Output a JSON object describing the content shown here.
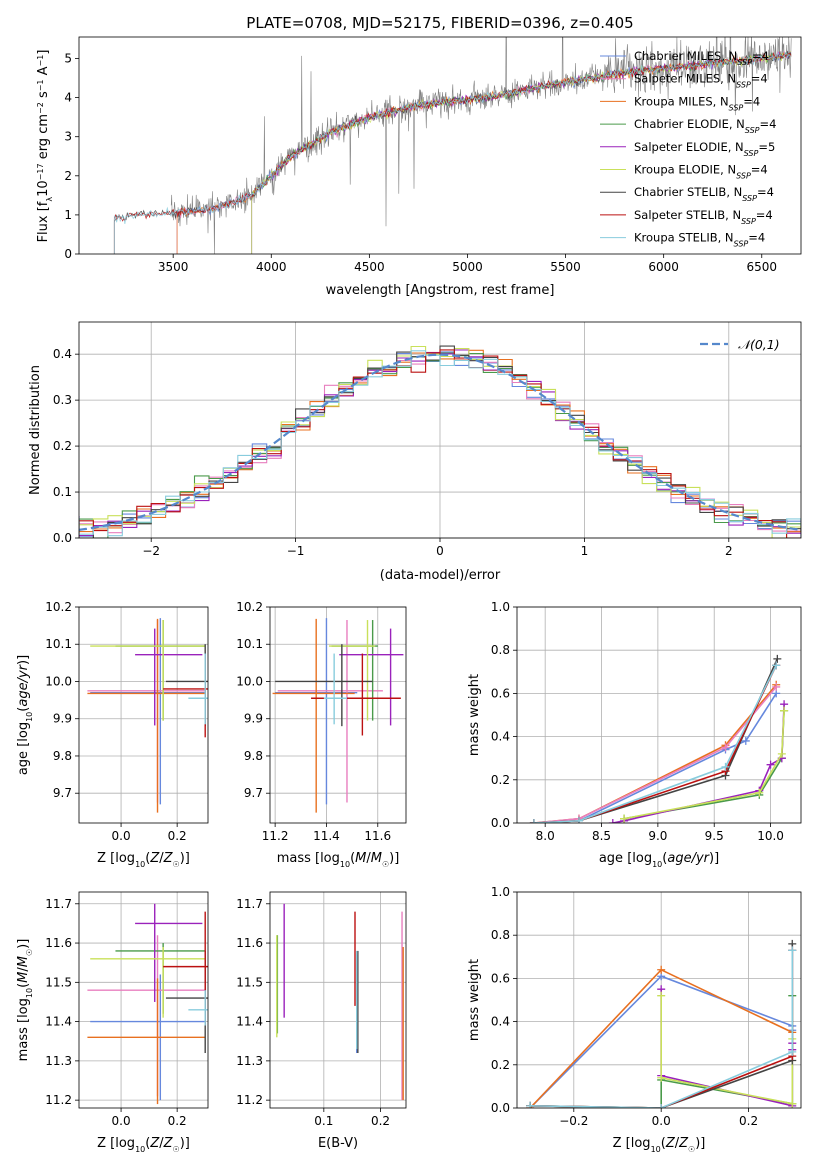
{
  "figure_title": "PLATE=0708, MJD=52175, FIBERID=0396, z=0.405",
  "colors": {
    "Chabrier MILES": "#6688dd",
    "Salpeter MILES": "#e87fbf",
    "Kroupa MILES": "#e87020",
    "Chabrier ELODIE": "#4a9a4a",
    "Salpeter ELODIE": "#9a22bb",
    "Kroupa ELODIE": "#c9e05a",
    "Chabrier STELIB": "#444444",
    "Salpeter STELIB": "#bb1111",
    "Kroupa STELIB": "#88ccdd",
    "normal": "#5588cc",
    "data": "#808080"
  },
  "chart_data": [
    {
      "id": "spectrum",
      "type": "line",
      "title": "PLATE=0708, MJD=52175, FIBERID=0396, z=0.405",
      "xlabel": "wavelength [Angstrom, rest frame]",
      "ylabel": "Flux [f_λ 10^-17 erg cm^-2 s^-1 A^-1]",
      "xlim": [
        3020,
        6700
      ],
      "ylim": [
        0,
        5.55
      ],
      "xticks": [
        3500,
        4000,
        4500,
        5000,
        5500,
        6000,
        6500
      ],
      "yticks": [
        0,
        1,
        2,
        3,
        4,
        5
      ],
      "legend_position": "top-right",
      "legend": [
        {
          "name": "Chabrier MILES",
          "nssp": "4"
        },
        {
          "name": "Salpeter MILES",
          "nssp": "4"
        },
        {
          "name": "Kroupa MILES",
          "nssp": "4"
        },
        {
          "name": "Chabrier ELODIE",
          "nssp": "4"
        },
        {
          "name": "Salpeter ELODIE",
          "nssp": "5"
        },
        {
          "name": "Kroupa ELODIE",
          "nssp": "4"
        },
        {
          "name": "Chabrier STELIB",
          "nssp": "4"
        },
        {
          "name": "Salpeter STELIB",
          "nssp": "4"
        },
        {
          "name": "Kroupa STELIB",
          "nssp": "4"
        }
      ],
      "model_start": {
        "MILES": 3520,
        "ELODIE": 3900,
        "STELIB": 3200
      },
      "continuum": {
        "x": [
          3200,
          3300,
          3500,
          3700,
          3900,
          4000,
          4100,
          4300,
          4500,
          4700,
          4900,
          5100,
          5300,
          5500,
          5700,
          5900,
          6100,
          6300,
          6500,
          6650
        ],
        "y": [
          0.9,
          1.0,
          1.05,
          1.15,
          1.5,
          2.0,
          2.5,
          3.1,
          3.5,
          3.75,
          3.9,
          4.0,
          4.2,
          4.4,
          4.55,
          4.7,
          4.8,
          4.9,
          5.0,
          5.1
        ]
      },
      "data_range": [
        3490,
        6650
      ],
      "grid": false
    },
    {
      "id": "residuals",
      "type": "area",
      "xlabel": "(data-model)/error",
      "ylabel": "Normed distribution",
      "xlim": [
        -2.5,
        2.5
      ],
      "ylim": [
        0,
        0.47
      ],
      "xticks": [
        -2,
        -1,
        0,
        1,
        2
      ],
      "yticks": [
        0.0,
        0.1,
        0.2,
        0.3,
        0.4
      ],
      "legend": "𝒩(0,1)",
      "legend_position": "top-right",
      "bin_width": 0.1,
      "grid": true
    },
    {
      "id": "age_vs_Z",
      "type": "scatter",
      "xlabel": "Z [log10(Z/Z☉)]",
      "ylabel": "age [log10(age/yr)]",
      "xlim": [
        -0.15,
        0.31
      ],
      "ylim": [
        9.62,
        10.2
      ],
      "xticks": [
        0.0,
        0.2
      ],
      "yticks": [
        9.7,
        9.8,
        9.9,
        10.0,
        10.1,
        10.2
      ],
      "points": [
        {
          "model": "Chabrier MILES",
          "x": 0.14,
          "y": 9.97,
          "xerr": [
            0.25,
            0.16
          ],
          "yerr": [
            0.3,
            0.2
          ]
        },
        {
          "model": "Salpeter MILES",
          "x": 0.13,
          "y": 9.975,
          "xerr": [
            0.25,
            0.17
          ],
          "yerr": [
            0.3,
            0.19
          ]
        },
        {
          "model": "Kroupa MILES",
          "x": 0.13,
          "y": 9.968,
          "xerr": [
            0.25,
            0.17
          ],
          "yerr": [
            0.32,
            0.2
          ]
        },
        {
          "model": "Chabrier ELODIE",
          "x": 0.15,
          "y": 10.095,
          "xerr": [
            0.17,
            0.15
          ],
          "yerr": [
            0.2,
            0.07
          ]
        },
        {
          "model": "Salpeter ELODIE",
          "x": 0.12,
          "y": 10.072,
          "xerr": [
            0.07,
            0.17
          ],
          "yerr": [
            0.19,
            0.07
          ]
        },
        {
          "model": "Kroupa ELODIE",
          "x": 0.15,
          "y": 10.095,
          "xerr": [
            0.26,
            0.15
          ],
          "yerr": [
            0.2,
            0.07
          ]
        },
        {
          "model": "Chabrier STELIB",
          "x": 0.3,
          "y": 10.0,
          "xerr": [
            0.14,
            0.01
          ],
          "yerr": [
            0.12,
            0.1
          ]
        },
        {
          "model": "Salpeter STELIB",
          "x": 0.3,
          "y": 9.98,
          "xerr": [
            0.15,
            0.01
          ],
          "yerr": [
            0.13,
            0.09
          ]
        },
        {
          "model": "Kroupa STELIB",
          "x": 0.3,
          "y": 9.955,
          "xerr": [
            0.06,
            0.01
          ],
          "yerr": [
            0.07,
            0.12
          ]
        }
      ],
      "grid": true
    },
    {
      "id": "age_vs_mass",
      "type": "scatter",
      "xlabel": "mass [log10(M/M☉)]",
      "ylabel": "",
      "xlim": [
        11.18,
        11.71
      ],
      "ylim": [
        9.62,
        10.2
      ],
      "xticks": [
        11.2,
        11.4,
        11.6
      ],
      "yticks": [
        9.7,
        9.8,
        9.9,
        10.0,
        10.1,
        10.2
      ],
      "points": [
        {
          "model": "Chabrier MILES",
          "x": 11.4,
          "y": 9.97,
          "xerr": [
            0.2,
            0.12
          ],
          "yerr": [
            0.3,
            0.2
          ]
        },
        {
          "model": "Salpeter MILES",
          "x": 11.48,
          "y": 9.975,
          "xerr": [
            0.27,
            0.14
          ],
          "yerr": [
            0.3,
            0.19
          ]
        },
        {
          "model": "Kroupa MILES",
          "x": 11.36,
          "y": 9.968,
          "xerr": [
            0.17,
            0.15
          ],
          "yerr": [
            0.32,
            0.2
          ]
        },
        {
          "model": "Chabrier ELODIE",
          "x": 11.58,
          "y": 10.095,
          "xerr": [
            0.16,
            0.02
          ],
          "yerr": [
            0.2,
            0.07
          ]
        },
        {
          "model": "Salpeter ELODIE",
          "x": 11.65,
          "y": 10.072,
          "xerr": [
            0.2,
            0.05
          ],
          "yerr": [
            0.19,
            0.07
          ]
        },
        {
          "model": "Kroupa ELODIE",
          "x": 11.56,
          "y": 10.095,
          "xerr": [
            0.15,
            0.03
          ],
          "yerr": [
            0.2,
            0.07
          ]
        },
        {
          "model": "Chabrier STELIB",
          "x": 11.46,
          "y": 10.0,
          "xerr": [
            0.26,
            0.12
          ],
          "yerr": [
            0.12,
            0.1
          ]
        },
        {
          "model": "Salpeter STELIB",
          "x": 11.54,
          "y": 9.955,
          "xerr": [
            0.2,
            0.15
          ],
          "yerr": [
            0.1,
            0.12
          ]
        },
        {
          "model": "Kroupa STELIB",
          "x": 11.43,
          "y": 9.955,
          "xerr": [
            0.04,
            0.05
          ],
          "yerr": [
            0.07,
            0.12
          ]
        }
      ],
      "grid": true
    },
    {
      "id": "mass_weight_vs_age",
      "type": "line",
      "xlabel": "age [log10(age/yr)]",
      "ylabel": "mass weight",
      "xlim": [
        7.75,
        10.27
      ],
      "ylim": [
        0,
        1.0
      ],
      "xticks": [
        8.0,
        8.5,
        9.0,
        9.5,
        10.0
      ],
      "yticks": [
        0.0,
        0.2,
        0.4,
        0.6,
        0.8,
        1.0
      ],
      "series": [
        {
          "model": "Chabrier MILES",
          "x": [
            7.9,
            8.3,
            9.6,
            9.78,
            10.05
          ],
          "y": [
            0.0,
            0.01,
            0.34,
            0.38,
            0.6
          ]
        },
        {
          "model": "Kroupa MILES",
          "x": [
            7.9,
            8.3,
            9.6,
            10.05
          ],
          "y": [
            0.0,
            0.02,
            0.36,
            0.64
          ]
        },
        {
          "model": "Salpeter MILES",
          "x": [
            7.9,
            8.3,
            9.6,
            10.05
          ],
          "y": [
            0.0,
            0.02,
            0.35,
            0.63
          ]
        },
        {
          "model": "Chabrier ELODIE",
          "x": [
            8.7,
            9.9,
            10.1,
            10.12
          ],
          "y": [
            0.02,
            0.13,
            0.3,
            0.52
          ]
        },
        {
          "model": "Salpeter ELODIE",
          "x": [
            8.6,
            8.7,
            9.9,
            10.0,
            10.1,
            10.12
          ],
          "y": [
            0.0,
            0.01,
            0.15,
            0.27,
            0.3,
            0.55
          ]
        },
        {
          "model": "Kroupa ELODIE",
          "x": [
            8.7,
            9.9,
            10.1,
            10.12
          ],
          "y": [
            0.02,
            0.14,
            0.32,
            0.52
          ]
        },
        {
          "model": "Chabrier STELIB",
          "x": [
            7.9,
            8.3,
            9.6,
            10.06
          ],
          "y": [
            0.0,
            0.01,
            0.22,
            0.76
          ]
        },
        {
          "model": "Salpeter STELIB",
          "x": [
            7.9,
            8.3,
            9.6,
            10.05
          ],
          "y": [
            0.0,
            0.01,
            0.24,
            0.73
          ]
        },
        {
          "model": "Kroupa STELIB",
          "x": [
            7.9,
            8.3,
            9.6,
            10.05
          ],
          "y": [
            0.0,
            0.01,
            0.26,
            0.73
          ]
        }
      ],
      "grid": true
    },
    {
      "id": "mass_vs_Z",
      "type": "scatter",
      "xlabel": "Z [log10(Z/Z☉)]",
      "ylabel": "mass [log10(M/M☉)]",
      "xlim": [
        -0.15,
        0.31
      ],
      "ylim": [
        11.18,
        11.73
      ],
      "xticks": [
        0.0,
        0.2
      ],
      "yticks": [
        11.2,
        11.3,
        11.4,
        11.5,
        11.6,
        11.7
      ],
      "points": [
        {
          "model": "Chabrier MILES",
          "x": 0.14,
          "y": 11.4,
          "xerr": [
            0.25,
            0.16
          ],
          "yerr": [
            0.2,
            0.12
          ]
        },
        {
          "model": "Salpeter MILES",
          "x": 0.13,
          "y": 11.48,
          "xerr": [
            0.25,
            0.17
          ],
          "yerr": [
            0.27,
            0.14
          ]
        },
        {
          "model": "Kroupa MILES",
          "x": 0.13,
          "y": 11.36,
          "xerr": [
            0.25,
            0.17
          ],
          "yerr": [
            0.17,
            0.15
          ]
        },
        {
          "model": "Chabrier ELODIE",
          "x": 0.15,
          "y": 11.58,
          "xerr": [
            0.17,
            0.15
          ],
          "yerr": [
            0.16,
            0.02
          ]
        },
        {
          "model": "Salpeter ELODIE",
          "x": 0.12,
          "y": 11.65,
          "xerr": [
            0.07,
            0.17
          ],
          "yerr": [
            0.2,
            0.05
          ]
        },
        {
          "model": "Kroupa ELODIE",
          "x": 0.15,
          "y": 11.56,
          "xerr": [
            0.26,
            0.15
          ],
          "yerr": [
            0.15,
            0.03
          ]
        },
        {
          "model": "Chabrier STELIB",
          "x": 0.3,
          "y": 11.46,
          "xerr": [
            0.14,
            0.01
          ],
          "yerr": [
            0.14,
            0.12
          ]
        },
        {
          "model": "Salpeter STELIB",
          "x": 0.3,
          "y": 11.54,
          "xerr": [
            0.15,
            0.01
          ],
          "yerr": [
            0.15,
            0.14
          ]
        },
        {
          "model": "Kroupa STELIB",
          "x": 0.3,
          "y": 11.43,
          "xerr": [
            0.06,
            0.01
          ],
          "yerr": [
            0.04,
            0.05
          ]
        }
      ],
      "grid": true
    },
    {
      "id": "mass_vs_ebv",
      "type": "scatter",
      "xlabel": "E(B-V)",
      "ylabel": "",
      "xlim": [
        0.005,
        0.245
      ],
      "ylim": [
        11.18,
        11.73
      ],
      "xticks": [
        0.1,
        0.2
      ],
      "yticks": [
        11.2,
        11.3,
        11.4,
        11.5,
        11.6,
        11.7
      ],
      "points": [
        {
          "model": "Chabrier MILES",
          "x": 0.158,
          "y": 11.4,
          "yerr": [
            0.08,
            0.17
          ]
        },
        {
          "model": "Salpeter MILES",
          "x": 0.238,
          "y": 11.48,
          "yerr": [
            0.28,
            0.2
          ]
        },
        {
          "model": "Kroupa MILES",
          "x": 0.24,
          "y": 11.36,
          "yerr": [
            0.16,
            0.23
          ]
        },
        {
          "model": "Chabrier ELODIE",
          "x": 0.018,
          "y": 11.56,
          "yerr": [
            0.19,
            0.06
          ]
        },
        {
          "model": "Salpeter ELODIE",
          "x": 0.03,
          "y": 11.6,
          "yerr": [
            0.19,
            0.1
          ]
        },
        {
          "model": "Kroupa ELODIE",
          "x": 0.017,
          "y": 11.55,
          "yerr": [
            0.19,
            0.07
          ]
        },
        {
          "model": "Chabrier STELIB",
          "x": 0.16,
          "y": 11.45,
          "yerr": [
            0.13,
            0.13
          ]
        },
        {
          "model": "Salpeter STELIB",
          "x": 0.155,
          "y": 11.54,
          "yerr": [
            0.1,
            0.14
          ]
        },
        {
          "model": "Kroupa STELIB",
          "x": 0.158,
          "y": 11.43,
          "yerr": [
            0.1,
            0.15
          ]
        }
      ],
      "grid": true
    },
    {
      "id": "mass_weight_vs_Z",
      "type": "line",
      "xlabel": "Z [log10(Z/Z☉)]",
      "ylabel": "mass weight",
      "xlim": [
        -0.33,
        0.32
      ],
      "ylim": [
        0,
        1.0
      ],
      "xticks": [
        -0.2,
        0.0,
        0.2
      ],
      "yticks": [
        0.0,
        0.2,
        0.4,
        0.6,
        0.8,
        1.0
      ],
      "series": [
        {
          "model": "Chabrier MILES",
          "x": [
            -0.3,
            0.0,
            0.3,
            0.3
          ],
          "y": [
            0.0,
            0.61,
            0.38,
            0.36
          ]
        },
        {
          "model": "Kroupa MILES",
          "x": [
            -0.3,
            0.0,
            0.3
          ],
          "y": [
            0.0,
            0.64,
            0.35
          ]
        },
        {
          "model": "Chabrier ELODIE",
          "x": [
            -0.3,
            0.0,
            0.0,
            0.3,
            0.3
          ],
          "y": [
            0.01,
            0.0,
            0.13,
            0.02,
            0.52
          ]
        },
        {
          "model": "Salpeter ELODIE",
          "x": [
            0.0,
            0.0,
            0.3,
            0.3,
            0.3
          ],
          "y": [
            0.55,
            0.15,
            0.01,
            0.27,
            0.3
          ]
        },
        {
          "model": "Kroupa ELODIE",
          "x": [
            0.0,
            0.0,
            0.3,
            0.3
          ],
          "y": [
            0.52,
            0.14,
            0.02,
            0.32
          ]
        },
        {
          "model": "Chabrier STELIB",
          "x": [
            -0.3,
            0.0,
            0.3,
            0.3
          ],
          "y": [
            0.01,
            0.0,
            0.22,
            0.76
          ]
        },
        {
          "model": "Salpeter STELIB",
          "x": [
            -0.3,
            0.0,
            0.3,
            0.3
          ],
          "y": [
            0.01,
            0.0,
            0.24,
            0.73
          ]
        },
        {
          "model": "Kroupa STELIB",
          "x": [
            -0.3,
            0.0,
            0.3,
            0.3
          ],
          "y": [
            0.01,
            0.0,
            0.26,
            0.73
          ]
        }
      ],
      "grid": true
    }
  ]
}
